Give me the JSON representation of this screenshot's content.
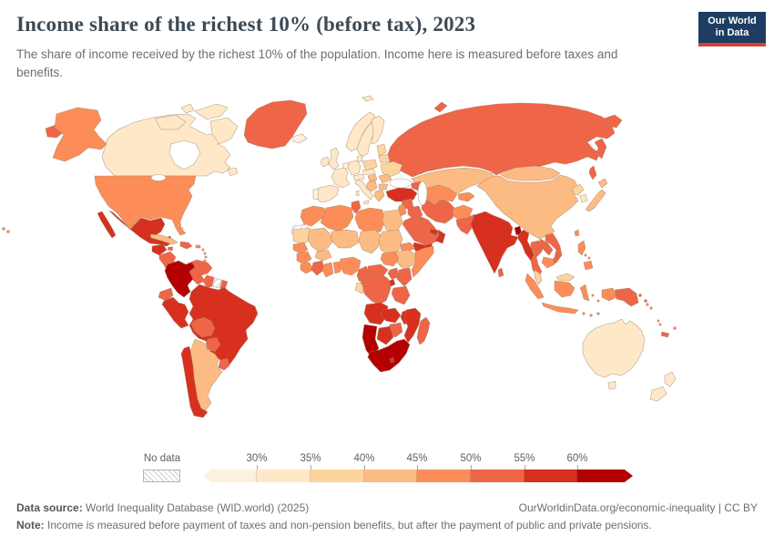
{
  "header": {
    "title": "Income share of the richest 10% (before tax), 2023",
    "subtitle": "The share of income received by the richest 10% of the population. Income here is measured before taxes and benefits.",
    "logo": {
      "line1": "Our World",
      "line2": "in Data",
      "bg_color": "#1d3d63",
      "bar_color": "#d63e32"
    }
  },
  "legend": {
    "no_data_label": "No data",
    "ticks": [
      "30%",
      "35%",
      "40%",
      "45%",
      "50%",
      "55%",
      "60%"
    ],
    "bin_labels": [
      "<30%",
      "30–35%",
      "35–40%",
      "40–45%",
      "45–50%",
      "50–55%",
      "55–60%",
      ">60%"
    ],
    "bin_colors": [
      "#fdf0dc",
      "#fee8c8",
      "#fdd49e",
      "#fdbb84",
      "#fc8d59",
      "#ef6548",
      "#d7301f",
      "#b30000"
    ]
  },
  "map": {
    "ocean_color": "#ffffff",
    "border_color": "#9b8269",
    "countries": {
      "russia": 5,
      "canada": 1,
      "greenland": 5,
      "usa": 4,
      "mexico": 6,
      "guatemala": 6,
      "honduras": 5,
      "costa-panama": 6,
      "cuba": 3,
      "jamaica": 5,
      "hispaniola": 5,
      "puerto-rico": 4,
      "bahamas": 2,
      "antilles": 4,
      "colombia": 7,
      "venezuela": 5,
      "guyana": 5,
      "suriname": -1,
      "french-guiana": 5,
      "ecuador": 5,
      "peru": 6,
      "brazil": 6,
      "bolivia": 5,
      "paraguay": 5,
      "uruguay": 5,
      "argentina": 3,
      "chile": 6,
      "iceland": 0,
      "norway": 1,
      "sweden": 1,
      "finland": 1,
      "denmark": 1,
      "uk": 1,
      "ireland": 1,
      "benelux": 0,
      "germany": 1,
      "france": 1,
      "spain": 1,
      "portugal": 0,
      "italy": 1,
      "austria-switzerland": 1,
      "czech-slovakia": 1,
      "poland": 2,
      "baltics": 2,
      "belarus": 2,
      "ukraine": 2,
      "hungary": 3,
      "romania": 3,
      "balkans": 3,
      "bulgaria": 3,
      "greece": 3,
      "turkey": 6,
      "caucasus": 5,
      "syria": 5,
      "levant": 4,
      "iraq": 5,
      "iran": 5,
      "saudi-arabia": 5,
      "yemen": 6,
      "oman": 6,
      "uae": 6,
      "kazakhstan": 3,
      "uzbek-turkmen": 4,
      "kyrgyz-tajik": 4,
      "afghanistan": 4,
      "pakistan": 5,
      "morocco": 4,
      "western-sahara": -1,
      "algeria": 4,
      "tunisia": 5,
      "libya": 4,
      "egypt": 3,
      "mauritania": 2,
      "mali": 3,
      "niger": 3,
      "chad": 3,
      "sudan": 3,
      "south-sudan": 4,
      "eritrea": 4,
      "ethiopia": 3,
      "somalia": 4,
      "senegal": 4,
      "guinea": 4,
      "sierra-liberia": 4,
      "ivory-coast": 5,
      "ghana": 4,
      "togo-benin": 4,
      "burkina": 3,
      "nigeria": 4,
      "cameroon": 5,
      "car": 5,
      "gabon": 2,
      "congo": 5,
      "drc": 5,
      "uganda": 5,
      "rwanda-burundi": 6,
      "kenya": 5,
      "tanzania": 5,
      "angola": 6,
      "zambia": 6,
      "malawi": 6,
      "mozambique": 6,
      "zimbabwe": 5,
      "botswana": 6,
      "namibia": 7,
      "south-africa": 7,
      "lesotho": 6,
      "madagascar": 5,
      "china": 3,
      "mongolia": 3,
      "taiwan": 4,
      "north-korea": 2,
      "south-korea": 1,
      "japan": 3,
      "nepal": 4,
      "bangladesh": 7,
      "india": 6,
      "sri-lanka": 5,
      "myanmar": 6,
      "thailand": 5,
      "laos": 5,
      "vietnam": 5,
      "cambodia": 4,
      "malaysia": 2,
      "indonesia": 4,
      "philippines": 4,
      "png": 5,
      "solomon": 4,
      "fiji": 4,
      "vanuatu": 4,
      "new-caledonia": 5,
      "australia": 1,
      "new-zealand": 1
    }
  },
  "footer": {
    "source_label": "Data source:",
    "source_text": " World Inequality Database (WID.world) (2025)",
    "right_text": "OurWorldinData.org/economic-inequality | CC BY",
    "note_label": "Note:",
    "note_text": " Income is measured before payment of taxes and non-pension benefits, but after the payment of public and private pensions."
  }
}
